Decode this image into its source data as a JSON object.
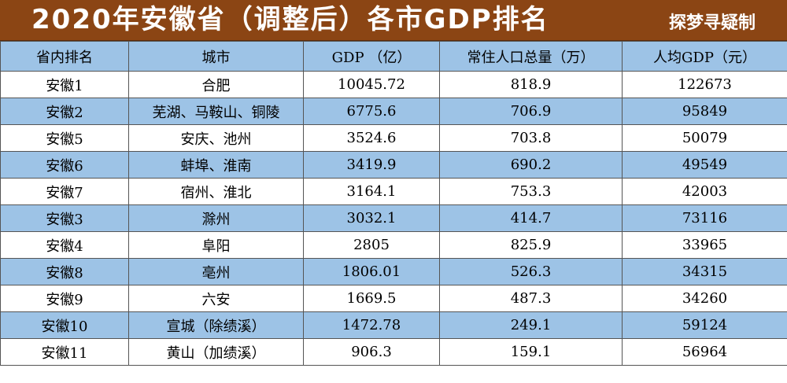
{
  "header": {
    "title": "2020年安徽省（调整后）各市GDP排名",
    "credit": "探梦寻疑制"
  },
  "table": {
    "columns": [
      "省内排名",
      "城市",
      "GDP （亿）",
      "常住人口总量（万）",
      "人均GDP（元）"
    ],
    "rows": [
      [
        "安徽1",
        "合肥",
        "10045.72",
        "818.9",
        "122673"
      ],
      [
        "安徽2",
        "芜湖、马鞍山、铜陵",
        "6775.6",
        "706.9",
        "95849"
      ],
      [
        "安徽5",
        "安庆、池州",
        "3524.6",
        "703.8",
        "50079"
      ],
      [
        "安徽6",
        "蚌埠、淮南",
        "3419.9",
        "690.2",
        "49549"
      ],
      [
        "安徽7",
        "宿州、淮北",
        "3164.1",
        "753.3",
        "42003"
      ],
      [
        "安徽3",
        "滁州",
        "3032.1",
        "414.7",
        "73116"
      ],
      [
        "安徽4",
        "阜阳",
        "2805",
        "825.9",
        "33965"
      ],
      [
        "安徽8",
        "亳州",
        "1806.01",
        "526.3",
        "34315"
      ],
      [
        "安徽9",
        "六安",
        "1669.5",
        "487.3",
        "34260"
      ],
      [
        "安徽10",
        "宣城（除绩溪）",
        "1472.78",
        "249.1",
        "59124"
      ],
      [
        "安徽11",
        "黄山（加绩溪）",
        "906.3",
        "159.1",
        "56964"
      ]
    ]
  },
  "colors": {
    "title_bg": "#8b4514",
    "row_stripe": "#9dc3e6",
    "border": "#555555"
  }
}
